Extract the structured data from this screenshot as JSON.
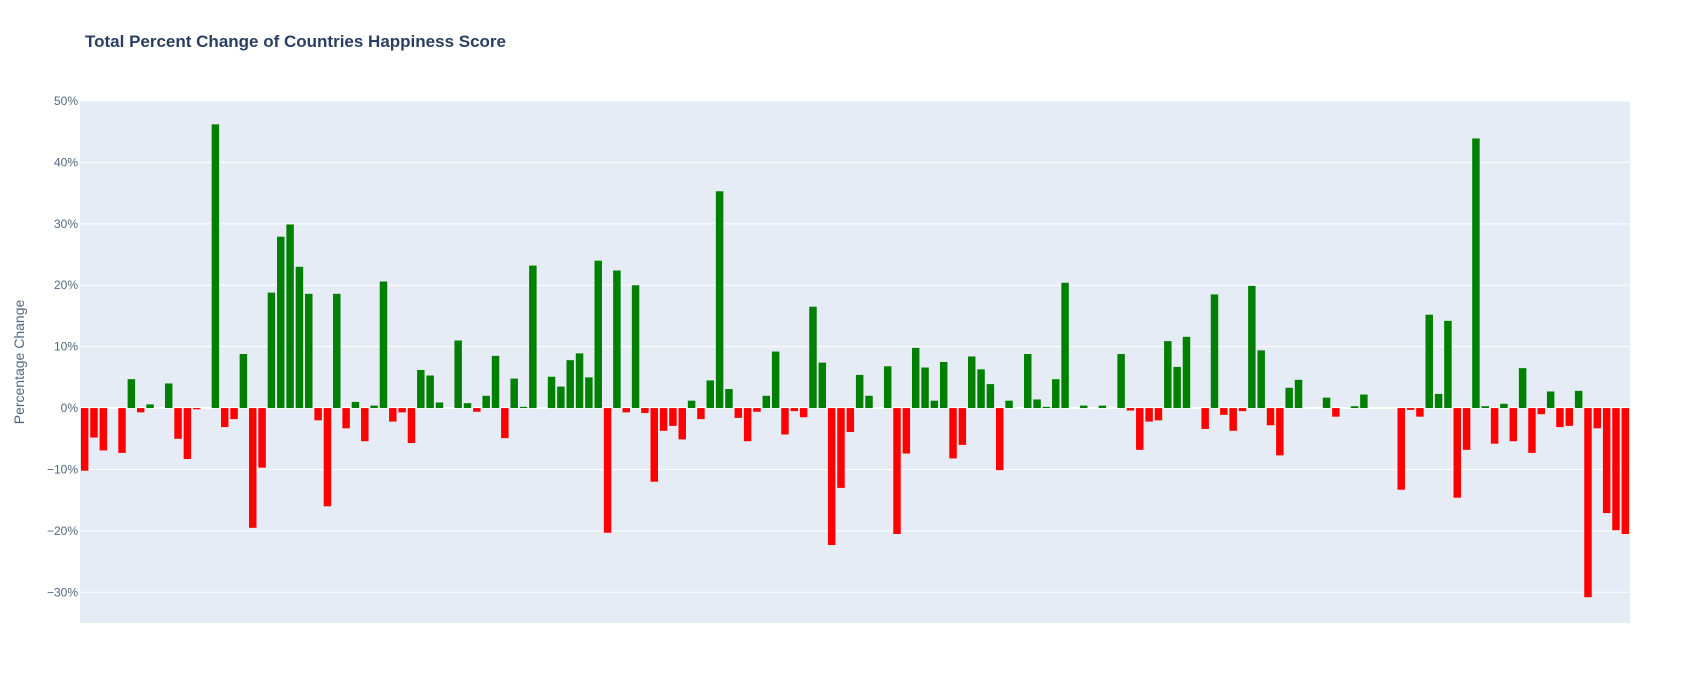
{
  "chart_data": {
    "type": "bar",
    "title": "Total Percent Change of Countries Happiness Score",
    "xlabel": "",
    "ylabel": "Percentage Change",
    "ylim": [
      -35,
      50
    ],
    "yticks": [
      -30,
      -20,
      -10,
      0,
      10,
      20,
      30,
      40,
      50
    ],
    "ytick_labels": [
      "−30%",
      "−20%",
      "−10%",
      "0%",
      "10%",
      "20%",
      "30%",
      "40%",
      "50%"
    ],
    "grid": true,
    "legend": "none",
    "colors": {
      "positive": "#008000",
      "negative": "#ff0000",
      "plot_bg": "#e5ecf6",
      "grid": "#ffffff",
      "text": "#506784",
      "title": "#2a3f5f"
    },
    "values": [
      -10.2,
      -4.8,
      -6.9,
      0.0,
      -7.3,
      4.7,
      -0.7,
      0.6,
      0.0,
      4.0,
      -5.0,
      -8.3,
      -0.2,
      0.0,
      46.2,
      -3.1,
      -1.8,
      8.8,
      -19.5,
      -9.7,
      18.8,
      27.9,
      29.9,
      23.0,
      18.6,
      -2.0,
      -16.0,
      18.6,
      -3.3,
      1.0,
      -5.4,
      0.4,
      20.6,
      -2.2,
      -0.7,
      -5.7,
      6.2,
      5.3,
      0.9,
      0.0,
      11.0,
      0.8,
      -0.6,
      2.0,
      8.5,
      -4.9,
      4.8,
      0.2,
      23.2,
      0.0,
      5.1,
      3.5,
      7.8,
      8.9,
      5.0,
      24.0,
      -20.3,
      22.4,
      -0.7,
      20.0,
      -0.8,
      -12.0,
      -3.7,
      -2.9,
      -5.1,
      1.2,
      -1.8,
      4.5,
      35.3,
      3.1,
      -1.6,
      -5.4,
      -0.6,
      2.0,
      9.2,
      -4.3,
      -0.5,
      -1.5,
      16.5,
      7.4,
      -22.3,
      -13.0,
      -3.9,
      5.4,
      2.0,
      0.0,
      6.8,
      -20.5,
      -7.4,
      9.8,
      6.6,
      1.2,
      7.5,
      -8.2,
      -6.0,
      8.4,
      6.3,
      3.9,
      -10.1,
      1.2,
      0.0,
      8.8,
      1.4,
      0.2,
      4.7,
      20.4,
      0.0,
      0.4,
      0.0,
      0.4,
      0.0,
      8.8,
      -0.4,
      -6.8,
      -2.2,
      -2.0,
      10.9,
      6.7,
      11.6,
      0.0,
      -3.4,
      18.5,
      -1.1,
      -3.7,
      -0.5,
      19.9,
      9.4,
      -2.8,
      -7.7,
      3.3,
      4.6,
      0.0,
      0.0,
      1.7,
      -1.4,
      0.0,
      0.3,
      2.2,
      0.0,
      0.0,
      0.0,
      -13.3,
      -0.3,
      -1.4,
      15.2,
      2.3,
      14.2,
      -14.6,
      -6.8,
      43.9,
      0.3,
      -5.8,
      0.7,
      -5.4,
      6.5,
      -7.3,
      -1.0,
      2.7,
      -3.1,
      -2.9,
      2.8,
      -30.8,
      -3.3,
      -17.1,
      -19.9,
      -20.5
    ]
  }
}
